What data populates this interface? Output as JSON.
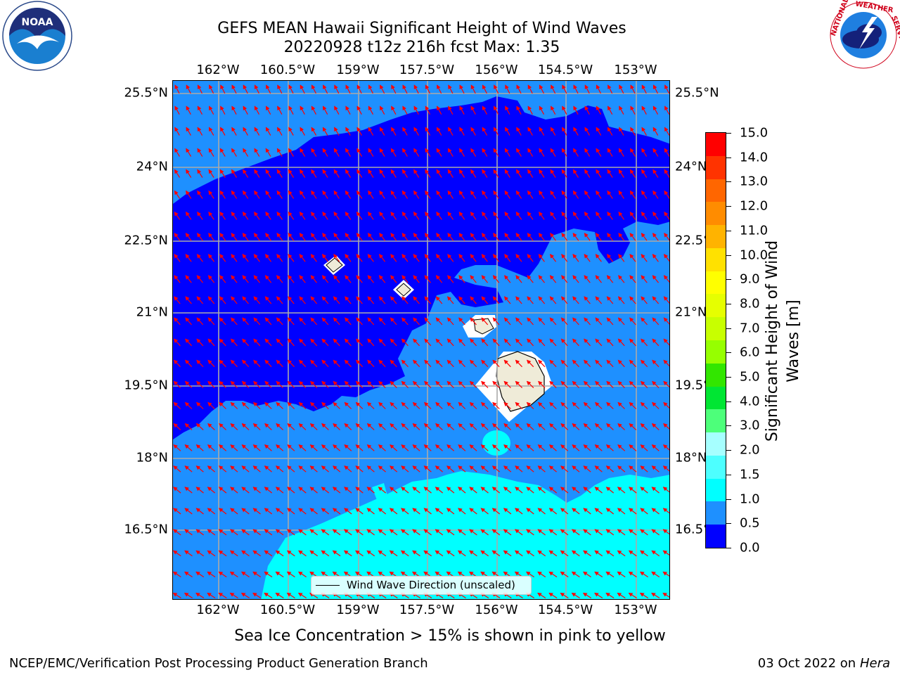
{
  "title": {
    "line1": "GEFS MEAN Hawaii Significant Height of Wind Waves",
    "line2": "20220928 t12z 216h fcst   Max: 1.35"
  },
  "map": {
    "lon_ticks": [
      "162°W",
      "160.5°W",
      "159°W",
      "157.5°W",
      "156°W",
      "154.5°W",
      "153°W"
    ],
    "lat_ticks": [
      "25.5°N",
      "24°N",
      "22.5°N",
      "21°N",
      "19.5°N",
      "18°N",
      "16.5°N"
    ],
    "legend_label": "Wind Wave Direction (unscaled)",
    "colors": {
      "level_0_0.5": "#0000ff",
      "level_0.5_1.0": "#1e90ff",
      "level_1.0_1.5": "#00ffff",
      "land": "#efebd8",
      "arrows": "#ff0000"
    }
  },
  "colorbar": {
    "ticks": [
      "15.0",
      "14.0",
      "13.0",
      "12.0",
      "11.0",
      "10.0",
      "9.0",
      "8.0",
      "7.0",
      "6.0",
      "5.0",
      "4.0",
      "3.0",
      "2.0",
      "1.5",
      "1.0",
      "0.5",
      "0.0"
    ],
    "colors": [
      "#ff0000",
      "#ff3300",
      "#ff6600",
      "#ff8c00",
      "#ffb300",
      "#ffe100",
      "#ffff00",
      "#e6ff00",
      "#c8ff00",
      "#96ff00",
      "#32e600",
      "#00e633",
      "#4dff7a",
      "#a6ffff",
      "#4dffff",
      "#00ffff",
      "#1e90ff",
      "#0000ff"
    ],
    "label": "Significant Height of Wind Waves [m]"
  },
  "caption": "Sea Ice Concentration > 15% is shown in pink to yellow",
  "footer": {
    "left": "NCEP/EMC/Verification Post Processing Product Generation Branch",
    "right_date": "03 Oct 2022 on ",
    "right_host": "Hera"
  },
  "logos": {
    "left_text": "NOAA",
    "left_ring": "NATIONAL OCEANIC AND ATMOSPHERIC ADMINISTRATION · U.S. DEPARTMENT OF COMMERCE",
    "right_ring": "NATIONAL WEATHER SERVICE"
  }
}
